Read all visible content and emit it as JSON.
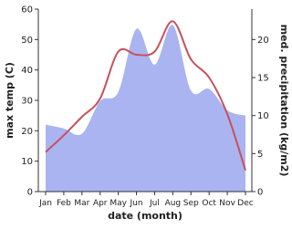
{
  "chart_data": {
    "type": "area-line",
    "xlabel": "date (month)",
    "ylabel": "max temp (C)",
    "y2label": "med. precipitation (kg/m2)",
    "categories": [
      "Jan",
      "Feb",
      "Mar",
      "Apr",
      "May",
      "Jun",
      "Jul",
      "Aug",
      "Sep",
      "Oct",
      "Nov",
      "Dec"
    ],
    "series": [
      {
        "name": "precipitation",
        "type": "area",
        "axis": "y2",
        "color": "#aab4f0",
        "values": [
          8.8,
          8.3,
          7.6,
          11.9,
          13.1,
          21.4,
          16.7,
          21.9,
          13.3,
          13.5,
          10.7,
          10.0
        ]
      },
      {
        "name": "max temp",
        "type": "line",
        "color": "#c8505a",
        "values": [
          13,
          18.5,
          24.6,
          30.6,
          46,
          45,
          46,
          56,
          43.5,
          37.5,
          25.5,
          7
        ]
      }
    ],
    "ylim": [
      0,
      60
    ],
    "yticks": [
      0,
      10,
      20,
      30,
      40,
      50,
      60
    ],
    "y2lim": [
      0,
      24
    ],
    "y2ticks": [
      0,
      5,
      10,
      15,
      20
    ]
  }
}
